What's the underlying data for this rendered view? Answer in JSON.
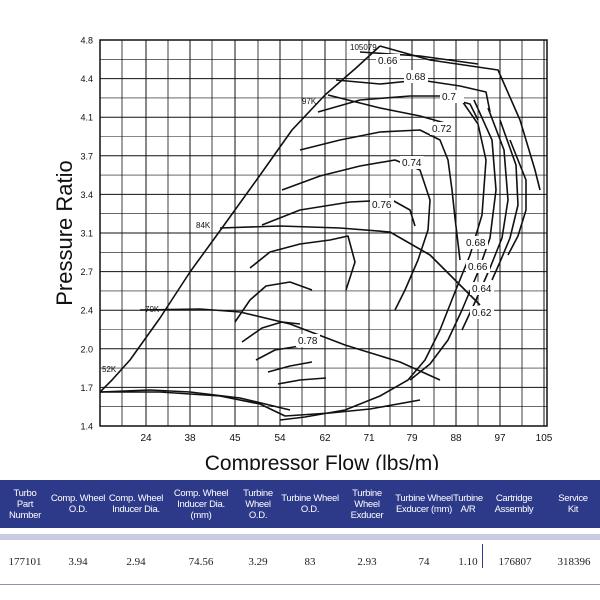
{
  "chart_data": {
    "type": "line",
    "title": "",
    "xlabel": "Compressor Flow (lbs/m)",
    "ylabel": "Pressure Ratio",
    "x_ticks": [
      "24",
      "38",
      "45",
      "54",
      "62",
      "71",
      "79",
      "88",
      "97",
      "105"
    ],
    "y_ticks": [
      "1.4",
      "1.7",
      "2.0",
      "2.4",
      "2.7",
      "3.1",
      "3.4",
      "3.7",
      "4.1",
      "4.4",
      "4.8"
    ],
    "speed_labels": [
      "52K",
      "70K",
      "84K",
      "97K",
      "105079"
    ],
    "efficiency_labels": [
      "0.66",
      "0.68",
      "0.7",
      "0.72",
      "0.74",
      "0.76",
      "0.78",
      "0.68",
      "0.66",
      "0.64",
      "0.62"
    ],
    "grid": true
  },
  "table": {
    "headers": [
      [
        "Turbo",
        "Part Number"
      ],
      [
        "Comp. Wheel",
        "O.D."
      ],
      [
        "Comp. Wheel",
        "Inducer Dia."
      ],
      [
        "Comp. Wheel",
        "Inducer Dia. (mm)"
      ],
      [
        "Turbine",
        "Wheel O.D."
      ],
      [
        "Turbine Wheel",
        "O.D."
      ],
      [
        "Turbine Wheel",
        "Exducer"
      ],
      [
        "Turbine Wheel",
        "Exducer (mm)"
      ],
      [
        "Turbine",
        "A/R"
      ],
      [
        "Cartridge",
        "Assembly"
      ],
      [
        "Service",
        "Kit"
      ]
    ],
    "row": [
      "177101",
      "3.94",
      "2.94",
      "74.56",
      "3.29",
      "83",
      "2.93",
      "74",
      "1.10",
      "176807",
      "318396"
    ]
  }
}
